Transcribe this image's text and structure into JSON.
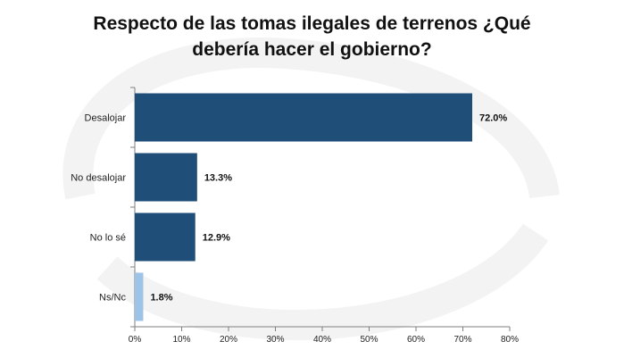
{
  "title_lines": [
    "Respecto de las tomas ilegales de terrenos ¿Qué",
    "debería hacer el gobierno?"
  ],
  "colors": {
    "bar_dark": "#1f4e79",
    "bar_light": "#9dc3e6",
    "axis": "#7f7f7f",
    "watermark": "#f3f3f3"
  },
  "chart_data": {
    "type": "bar",
    "orientation": "horizontal",
    "title": "Respecto de las tomas ilegales de terrenos ¿Qué debería hacer el gobierno?",
    "categories": [
      "Desalojar",
      "No desalojar",
      "No lo sé",
      "Ns/Nc"
    ],
    "values": [
      72.0,
      13.3,
      12.9,
      1.8
    ],
    "value_labels": [
      "72.0%",
      "13.3%",
      "12.9%",
      "1.8%"
    ],
    "bar_colors": [
      "#1f4e79",
      "#1f4e79",
      "#1f4e79",
      "#9dc3e6"
    ],
    "xlim": [
      0,
      80
    ],
    "xticks": [
      0,
      10,
      20,
      30,
      40,
      50,
      60,
      70,
      80
    ],
    "xtick_labels": [
      "0%",
      "10%",
      "20%",
      "30%",
      "40%",
      "50%",
      "60%",
      "70%",
      "80%"
    ],
    "xlabel": "",
    "ylabel": "",
    "grid": false,
    "legend": false
  }
}
